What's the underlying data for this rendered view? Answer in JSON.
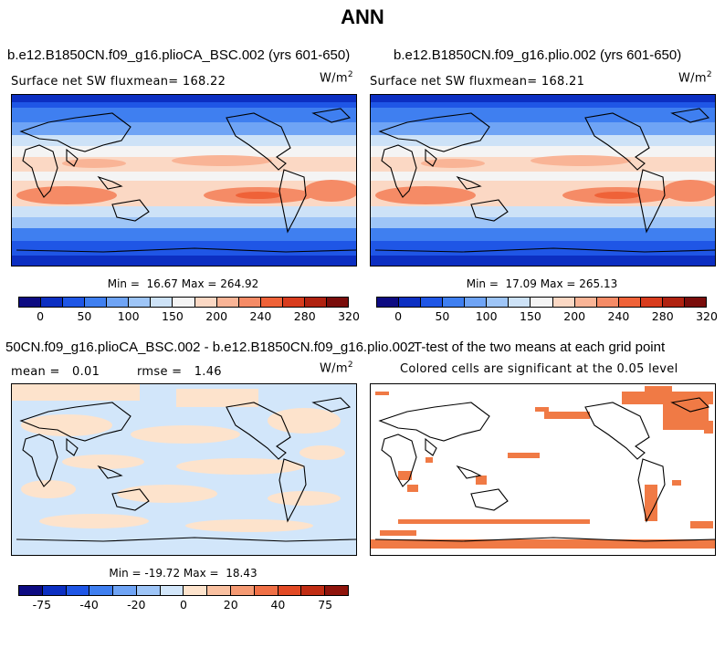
{
  "figure_title": "ANN",
  "panels": {
    "top_left": {
      "title": "b.e12.B1850CN.f09_g16.plioCA_BSC.002 (yrs 601-650)",
      "left_label": "Surface net SW flux",
      "mean_label": "mean= 168.22",
      "units": "W/m",
      "units_exp": "2",
      "min_label": "Min =",
      "min_value": "16.67",
      "max_label": "Max =",
      "max_value": "264.92"
    },
    "top_right": {
      "title": "b.e12.B1850CN.f09_g16.plio.002 (yrs 601-650)",
      "left_label": "Surface net SW flux",
      "mean_label": "mean= 168.21",
      "units": "W/m",
      "units_exp": "2",
      "min_label": "Min =",
      "min_value": "17.09",
      "max_label": "Max =",
      "max_value": "265.13"
    },
    "bottom_left": {
      "title": "50CN.f09_g16.plioCA_BSC.002 - b.e12.B1850CN.f09_g16.plio.002",
      "mean_label": "mean =",
      "mean_value": "0.01",
      "rmse_label": "rmse =",
      "rmse_value": "1.46",
      "units": "W/m",
      "units_exp": "2",
      "min_label": "Min =",
      "min_value": "-19.72",
      "max_label": "Max =",
      "max_value": "18.43"
    },
    "bottom_right": {
      "title": "T-test of the two means at each grid point",
      "subtitle": "Colored cells are significant at the 0.05 level"
    }
  },
  "colorbar_top": {
    "ticks": [
      "0",
      "50",
      "100",
      "150",
      "200",
      "240",
      "280",
      "320"
    ],
    "colors": [
      "#0d0b82",
      "#0c2fc2",
      "#1f56e6",
      "#3f7ff0",
      "#6fa4f5",
      "#9ec5f7",
      "#cde2f7",
      "#f4f4f4",
      "#fbd8c4",
      "#f9b496",
      "#f58b66",
      "#ef6238",
      "#d83c1d",
      "#b02210",
      "#7a0d0b"
    ]
  },
  "colorbar_diff": {
    "ticks": [
      "-75",
      "-40",
      "-20",
      "0",
      "20",
      "40",
      "75"
    ],
    "colors": [
      "#0d0b82",
      "#0c2fc2",
      "#1f56e6",
      "#3f7ff0",
      "#6fa4f5",
      "#9ec5f7",
      "#d2e6fa",
      "#fde3cc",
      "#f9c0a0",
      "#f59a73",
      "#f07046",
      "#e24a25",
      "#c12d14",
      "#8f140c"
    ]
  },
  "colors": {
    "sig": "#f07a45",
    "diff_pos": "#fde3cc",
    "diff_neg": "#d2e6fa"
  }
}
